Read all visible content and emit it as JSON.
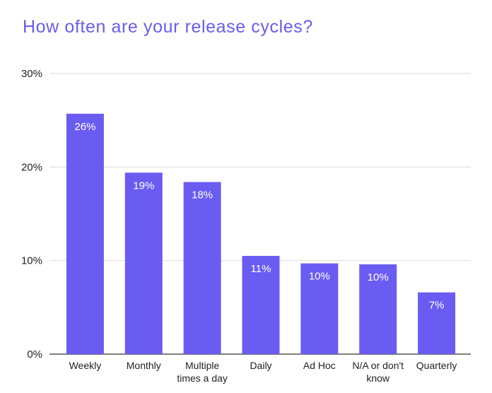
{
  "chart_data": {
    "type": "bar",
    "title": "How often are your release cycles?",
    "xlabel": "",
    "ylabel": "",
    "categories": [
      "Weekly",
      "Monthly",
      "Multiple times a day",
      "Daily",
      "Ad Hoc",
      "N/A or don't know",
      "Quarterly"
    ],
    "values": [
      25.7,
      19.4,
      18.4,
      10.5,
      9.7,
      9.6,
      6.6
    ],
    "data_labels": [
      "26%",
      "19%",
      "18%",
      "11%",
      "10%",
      "10%",
      "7%"
    ],
    "ylim": [
      0,
      30
    ],
    "yticks": [
      0,
      10,
      20,
      30
    ],
    "ytick_labels": [
      "0%",
      "10%",
      "20%",
      "30%"
    ],
    "grid": true,
    "legend": "none",
    "bar_color": "#6b5cf1",
    "title_color": "#6a5cf0",
    "grid_color": "#d9d9d9"
  }
}
